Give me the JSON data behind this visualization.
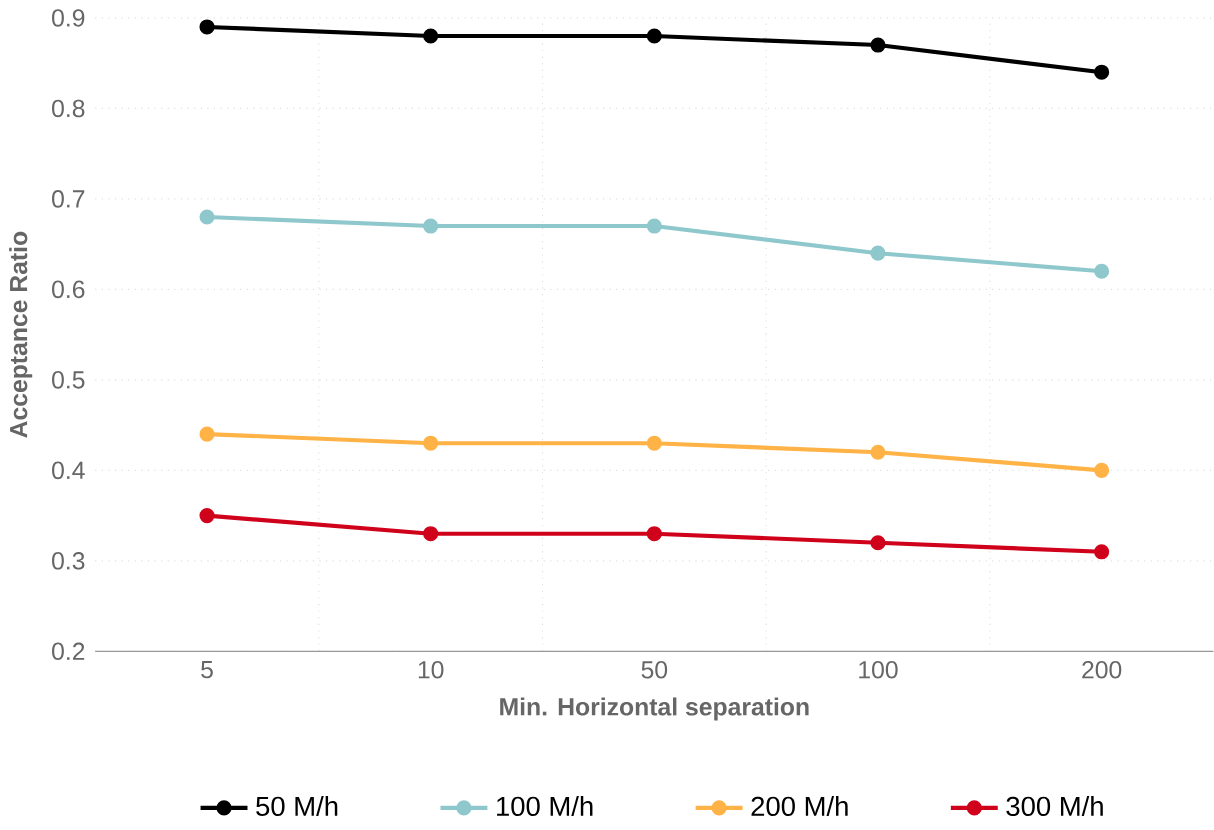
{
  "chart_data": {
    "type": "line",
    "xlabel": "Min. Horizontal separation",
    "ylabel": "Acceptance Ratio",
    "categories": [
      "5",
      "10",
      "50",
      "100",
      "200"
    ],
    "ylim": [
      0.2,
      0.9
    ],
    "yticks": [
      0.2,
      0.3,
      0.4,
      0.5,
      0.6,
      0.7,
      0.8,
      0.9
    ],
    "grid": true,
    "legend": "bottom",
    "marker": "circle",
    "line_style": "solid",
    "series": [
      {
        "name": "50 M/h",
        "color": "#000000",
        "values": [
          0.89,
          0.88,
          0.88,
          0.87,
          0.84
        ]
      },
      {
        "name": "100 M/h",
        "color": "#8ec8cc",
        "values": [
          0.68,
          0.67,
          0.67,
          0.64,
          0.62
        ]
      },
      {
        "name": "200 M/h",
        "color": "#ffb347",
        "values": [
          0.44,
          0.43,
          0.43,
          0.42,
          0.4
        ]
      },
      {
        "name": "300 M/h",
        "color": "#d0021b",
        "values": [
          0.35,
          0.33,
          0.33,
          0.32,
          0.31
        ]
      }
    ]
  }
}
